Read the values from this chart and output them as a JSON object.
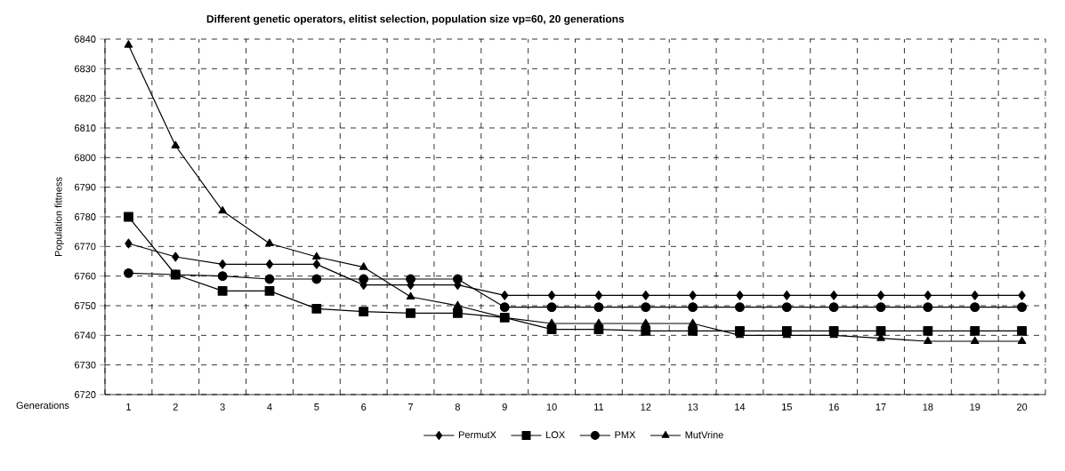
{
  "chart_data": {
    "type": "line",
    "title": "Different genetic operators, elitist selection, population size vp=60, 20 generations",
    "xlabel": "Generations",
    "ylabel": "Population fittness",
    "categories": [
      "1",
      "2",
      "3",
      "4",
      "5",
      "6",
      "7",
      "8",
      "9",
      "10",
      "11",
      "12",
      "13",
      "14",
      "15",
      "16",
      "17",
      "18",
      "19",
      "20"
    ],
    "series": [
      {
        "name": "PermutX",
        "color": "#000000",
        "marker": "diamond",
        "values": [
          6771,
          6766.5,
          6764,
          6764,
          6764,
          6757,
          6757,
          6757,
          6753.5,
          6753.5,
          6753.5,
          6753.5,
          6753.5,
          6753.5,
          6753.5,
          6753.5,
          6753.5,
          6753.5,
          6753.5,
          6753.5
        ]
      },
      {
        "name": "LOX",
        "color": "#000000",
        "marker": "square",
        "values": [
          6780,
          6760.5,
          6755,
          6755,
          6749,
          6748,
          6747.5,
          6747.5,
          6746,
          6742,
          6742,
          6741.5,
          6741.5,
          6741.5,
          6741.5,
          6741.5,
          6741.5,
          6741.5,
          6741.5,
          6741.5
        ]
      },
      {
        "name": "PMX",
        "color": "#000000",
        "marker": "circle",
        "values": [
          6761,
          6760.5,
          6760,
          6759,
          6759,
          6759,
          6759,
          6759,
          6749.5,
          6749.5,
          6749.5,
          6749.5,
          6749.5,
          6749.5,
          6749.5,
          6749.5,
          6749.5,
          6749.5,
          6749.5,
          6749.5
        ]
      },
      {
        "name": "MutVrine",
        "color": "#000000",
        "marker": "triangle",
        "values": [
          6838,
          6804,
          6782,
          6771,
          6766.5,
          6763,
          6753,
          6750,
          6746,
          6744,
          6744,
          6744,
          6744,
          6740,
          6740,
          6740,
          6739,
          6738,
          6738,
          6738
        ]
      }
    ],
    "ylim": [
      6720,
      6840
    ],
    "yticks": [
      6720,
      6730,
      6740,
      6750,
      6760,
      6770,
      6780,
      6790,
      6800,
      6810,
      6820,
      6830,
      6840
    ],
    "grid": true,
    "legend": "bottom",
    "line_style": "solid"
  }
}
